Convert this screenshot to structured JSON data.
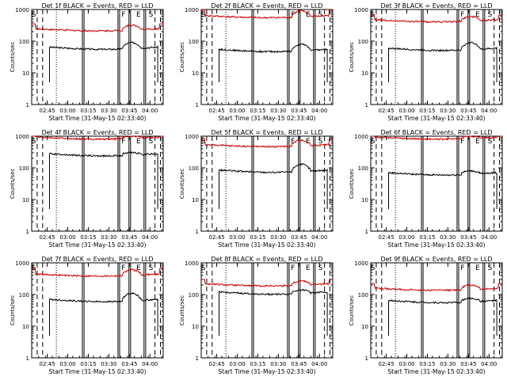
{
  "colors": {
    "events": "#000000",
    "lld": "#cc0000",
    "axis": "#000000",
    "background": "#ffffff"
  },
  "shared": {
    "ylabel": "Counts/sec",
    "xlabel": "Start Time (31-May-15 02:33:40)",
    "xtick_labels": [
      "02:45",
      "03:00",
      "03:15",
      "03:30",
      "03:45",
      "04:00"
    ],
    "ytick_labels": [
      "1",
      "10",
      "100",
      "1000"
    ],
    "marker_labels": [
      "S",
      "F",
      "E",
      "S"
    ],
    "x_range_min": [
      0,
      96
    ],
    "y_range": [
      1,
      1000
    ],
    "y_scale": "log",
    "x_axis": "time",
    "start_time": "31-May-15 02:33:40"
  },
  "chart_data": [
    {
      "type": "line",
      "title": "Det 1f BLACK = Events, RED = LLD",
      "series": [
        {
          "name": "Events",
          "start": 13,
          "end": 92,
          "level": 65,
          "peak": 90
        },
        {
          "name": "LLD",
          "start": 0,
          "end": 96,
          "level": 250,
          "peak": 320
        }
      ]
    },
    {
      "type": "line",
      "title": "Det 2f BLACK = Events, RED = LLD",
      "series": [
        {
          "name": "Events",
          "start": 13,
          "end": 92,
          "level": 55,
          "peak": 80
        },
        {
          "name": "LLD",
          "start": 0,
          "end": 96,
          "level": 650,
          "peak": 900
        }
      ]
    },
    {
      "type": "line",
      "title": "Det 3f BLACK = Events, RED = LLD",
      "series": [
        {
          "name": "Events",
          "start": 13,
          "end": 92,
          "level": 60,
          "peak": 90
        },
        {
          "name": "LLD",
          "start": 0,
          "end": 96,
          "level": 480,
          "peak": 600
        }
      ]
    },
    {
      "type": "line",
      "title": "Det 4f BLACK = Events, RED = LLD",
      "series": [
        {
          "name": "Events",
          "start": 13,
          "end": 92,
          "level": 280,
          "peak": 300
        },
        {
          "name": "LLD",
          "start": 0,
          "end": 96,
          "level": 950,
          "peak": 1000
        }
      ]
    },
    {
      "type": "line",
      "title": "Det 5f BLACK = Events, RED = LLD",
      "series": [
        {
          "name": "Events",
          "start": 13,
          "end": 92,
          "level": 85,
          "peak": 130
        },
        {
          "name": "LLD",
          "start": 0,
          "end": 96,
          "level": 550,
          "peak": 750
        }
      ]
    },
    {
      "type": "line",
      "title": "Det 6f BLACK = Events, RED = LLD",
      "series": [
        {
          "name": "Events",
          "start": 13,
          "end": 92,
          "level": 70,
          "peak": 80
        },
        {
          "name": "LLD",
          "start": 0,
          "end": 96,
          "level": 950,
          "peak": 1000
        }
      ]
    },
    {
      "type": "line",
      "title": "Det 7f BLACK = Events, RED = LLD",
      "series": [
        {
          "name": "Events",
          "start": 13,
          "end": 92,
          "level": 70,
          "peak": 110
        },
        {
          "name": "LLD",
          "start": 0,
          "end": 96,
          "level": 450,
          "peak": 600
        }
      ]
    },
    {
      "type": "line",
      "title": "Det 8f BLACK = Events, RED = LLD",
      "series": [
        {
          "name": "Events",
          "start": 13,
          "end": 92,
          "level": 120,
          "peak": 140
        },
        {
          "name": "LLD",
          "start": 0,
          "end": 96,
          "level": 220,
          "peak": 270
        }
      ]
    },
    {
      "type": "line",
      "title": "Det 9f BLACK = Events, RED = LLD",
      "series": [
        {
          "name": "Events",
          "start": 13,
          "end": 92,
          "level": 65,
          "peak": 75
        },
        {
          "name": "LLD",
          "start": 0,
          "end": 96,
          "level": 160,
          "peak": 200
        }
      ]
    }
  ]
}
